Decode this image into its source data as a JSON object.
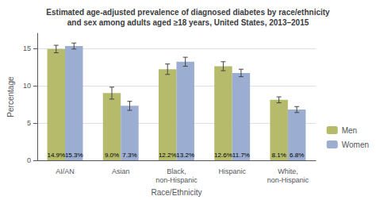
{
  "chart_data": {
    "type": "bar",
    "title": "Estimated age-adjusted prevalence of diagnosed diabetes by race/ethnicity\nand sex among adults aged ≥18 years, United States, 2013–2015",
    "xlabel": "Race/Ethnicity",
    "ylabel": "Percentage",
    "categories": [
      "AI/AN",
      "Asian",
      "Black, non-Hispanic",
      "Hispanic",
      "White, non-Hispanic"
    ],
    "series": [
      {
        "name": "Men",
        "color": "#b5bb6b",
        "values": [
          14.9,
          9.0,
          12.2,
          12.6,
          8.1
        ],
        "value_labels": [
          "14.9%",
          "9.0%",
          "12.2%",
          "12.6%",
          "8.1%"
        ],
        "errors": [
          0.5,
          0.8,
          0.7,
          0.6,
          0.4
        ]
      },
      {
        "name": "Women",
        "color": "#9badd0",
        "values": [
          15.3,
          7.3,
          13.2,
          11.7,
          6.8
        ],
        "value_labels": [
          "15.3%",
          "7.3%",
          "13.2%",
          "11.7%",
          "6.8%"
        ],
        "errors": [
          0.4,
          0.6,
          0.6,
          0.5,
          0.4
        ]
      }
    ],
    "ylim": [
      0,
      17
    ],
    "yticks": [
      0,
      5,
      10,
      15
    ],
    "grid": true,
    "legend": "lower right",
    "data_labels": true
  }
}
